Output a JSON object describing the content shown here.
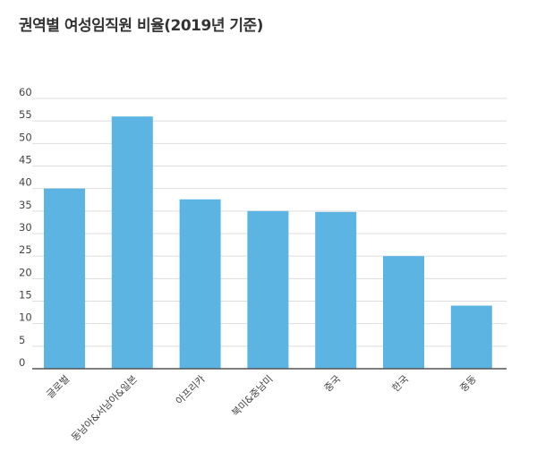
{
  "chart_data": {
    "type": "bar",
    "title": "권역별 여성임직원 비율(2019년 기준)",
    "categories": [
      "글로벌",
      "동남아&서남아&일본",
      "아프리카",
      "북미&중남미",
      "중국",
      "한국",
      "중동"
    ],
    "values": [
      40,
      56,
      37.6,
      35,
      34.8,
      25,
      14
    ],
    "yticks": [
      "0",
      "5",
      "10",
      "15",
      "20",
      "25",
      "30",
      "35",
      "40",
      "45",
      "50",
      "55",
      "60"
    ],
    "ylim": [
      0,
      60
    ],
    "bar_color": "#5cb4e3",
    "grid": true,
    "legend": "none"
  }
}
